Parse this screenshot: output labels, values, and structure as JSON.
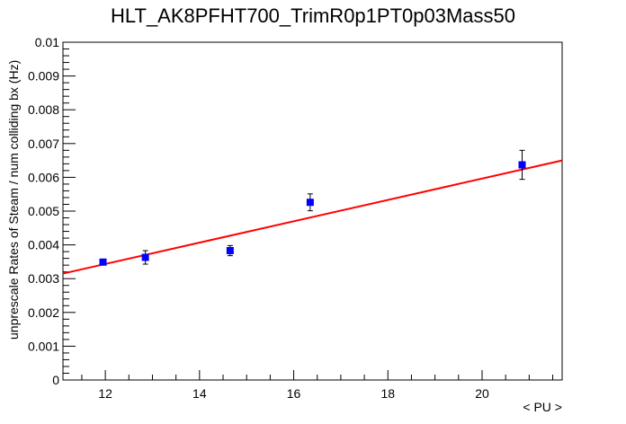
{
  "chart_data": {
    "type": "scatter",
    "title": "HLT_AK8PFHT700_TrimR0p1PT0p03Mass50",
    "xlabel": "< PU >",
    "ylabel": "unprescale Rates of Steam / num colliding bx (Hz)",
    "xlim": [
      11.1,
      21.7
    ],
    "ylim": [
      0,
      0.01
    ],
    "x_ticks": [
      "12",
      "14",
      "16",
      "18",
      "20"
    ],
    "y_ticks": [
      "0",
      "0.001",
      "0.002",
      "0.003",
      "0.004",
      "0.005",
      "0.006",
      "0.007",
      "0.008",
      "0.009",
      "0.01"
    ],
    "grid": false,
    "series": [
      {
        "points": [
          {
            "x": 11.95,
            "y": 0.00349,
            "yerr": 7e-05
          },
          {
            "x": 12.85,
            "y": 0.00363,
            "yerr": 0.0002
          },
          {
            "x": 14.65,
            "y": 0.00383,
            "yerr": 0.00015
          },
          {
            "x": 16.35,
            "y": 0.00526,
            "yerr": 0.00025
          },
          {
            "x": 20.85,
            "y": 0.00637,
            "yerr": 0.00043
          }
        ],
        "color": "#0000ff",
        "marker": "square"
      }
    ],
    "fit": {
      "type": "linear",
      "x": [
        11.1,
        21.7
      ],
      "y": [
        0.00315,
        0.0065
      ],
      "color": "#ff0000"
    }
  }
}
